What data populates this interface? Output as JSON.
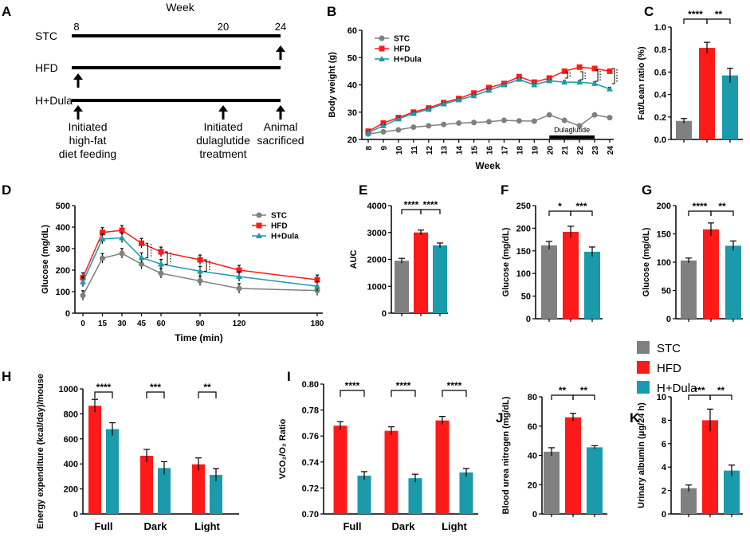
{
  "colors": {
    "stc": "#808080",
    "hfd": "#ff1a1a",
    "dula": "#1a9aaa",
    "axis": "#000000"
  },
  "legend_main": [
    "STC",
    "HFD",
    "H+Dula"
  ],
  "panels": {
    "A": {
      "letter": "A",
      "week_title": "Week",
      "groups": [
        "STC",
        "HFD",
        "H+Dula"
      ],
      "week_ticks": [
        "8",
        "20",
        "24"
      ],
      "annotations": [
        [
          "Initiated",
          "high-fat",
          "diet feeding"
        ],
        [
          "Initiated",
          "dulaglutide",
          "treatment"
        ],
        [
          "Animal",
          "sacrificed"
        ]
      ]
    },
    "B": {
      "letter": "B",
      "ylabel": "Body weight (g)",
      "xlabel": "Week",
      "x": [
        "8",
        "9",
        "10",
        "11",
        "12",
        "13",
        "14",
        "15",
        "16",
        "17",
        "18",
        "19",
        "20",
        "21",
        "22",
        "23",
        "24"
      ],
      "yticks": [
        "20",
        "30",
        "40",
        "50",
        "60"
      ],
      "ylim": [
        20,
        60
      ],
      "series": [
        {
          "name": "STC",
          "key": "stc",
          "values": [
            22,
            22.8,
            23.5,
            24.5,
            25,
            25.5,
            26,
            26.2,
            26.5,
            27,
            26.8,
            26.7,
            29,
            27,
            25,
            29,
            28
          ]
        },
        {
          "name": "HFD",
          "key": "hfd",
          "values": [
            23,
            26,
            28,
            30,
            31.5,
            33.5,
            35,
            37,
            39,
            40.5,
            43,
            41,
            42.5,
            45,
            46.5,
            46,
            45
          ]
        },
        {
          "name": "H+Dula",
          "key": "dula",
          "values": [
            22.5,
            25,
            27.5,
            29.5,
            31,
            33,
            34.5,
            36,
            38,
            40,
            42,
            40,
            41.5,
            41,
            41,
            40.5,
            38.5
          ]
        }
      ],
      "treatment_label": "Dulaglutide"
    },
    "C": {
      "letter": "C",
      "ylabel": "Fat/Lean ratio (%)",
      "yticks": [
        "0.0",
        "0.2",
        "0.4",
        "0.6",
        "0.8",
        "1.0"
      ],
      "ylim": [
        0,
        1.0
      ],
      "values": [
        0.165,
        0.815,
        0.57
      ],
      "sig": [
        "****",
        "**"
      ]
    },
    "D": {
      "letter": "D",
      "ylabel": "Glucose (mg/dL)",
      "xlabel": "Time (min)",
      "x": [
        0,
        15,
        30,
        45,
        60,
        90,
        120,
        180
      ],
      "xticks": [
        "0",
        "15",
        "30",
        "45",
        "60",
        "90",
        "120",
        "180"
      ],
      "yticks": [
        "0",
        "100",
        "200",
        "300",
        "400",
        "500"
      ],
      "ylim": [
        0,
        500
      ],
      "series": [
        {
          "name": "STC",
          "key": "stc",
          "values": [
            82,
            255,
            278,
            228,
            185,
            150,
            115,
            105
          ]
        },
        {
          "name": "HFD",
          "key": "hfd",
          "values": [
            165,
            375,
            385,
            325,
            285,
            248,
            200,
            155
          ]
        },
        {
          "name": "H+Dula",
          "key": "dula",
          "values": [
            145,
            345,
            350,
            258,
            228,
            195,
            170,
            125
          ]
        }
      ]
    },
    "E": {
      "letter": "E",
      "ylabel": "AUC",
      "yticks": [
        "0",
        "1000",
        "2000",
        "3000",
        "4000"
      ],
      "ylim": [
        0,
        4000
      ],
      "values": [
        1950,
        3000,
        2520
      ],
      "sig": [
        "****",
        "****"
      ]
    },
    "F": {
      "letter": "F",
      "ylabel": "Glucose (mg/dL)",
      "yticks": [
        "0",
        "50",
        "100",
        "150",
        "200",
        "250"
      ],
      "ylim": [
        0,
        250
      ],
      "values": [
        162,
        192,
        148
      ],
      "sig": [
        "*",
        "***"
      ]
    },
    "G": {
      "letter": "G",
      "ylabel": "Glucose (mg/dL)",
      "yticks": [
        "0",
        "50",
        "100",
        "150",
        "200"
      ],
      "ylim": [
        0,
        200
      ],
      "values": [
        103,
        158,
        129
      ],
      "sig": [
        "****",
        "**"
      ]
    },
    "H": {
      "letter": "H",
      "ylabel": "Energy expenditure (kcal/day)/mouse",
      "yticks": [
        "0",
        "200",
        "400",
        "600",
        "800",
        "1000"
      ],
      "ylim": [
        0,
        1000
      ],
      "categories": [
        "Full",
        "Dark",
        "Light"
      ],
      "hfd": [
        865,
        465,
        397
      ],
      "dula": [
        678,
        367,
        312
      ],
      "sig": [
        "****",
        "***",
        "**"
      ]
    },
    "I": {
      "letter": "I",
      "ylabel": "VCO₂/O₂ Ratio",
      "yticks": [
        "0.70",
        "0.72",
        "0.74",
        "0.76",
        "0.78",
        "0.80"
      ],
      "ylim": [
        0.7,
        0.8
      ],
      "categories": [
        "Full",
        "Dark",
        "Light"
      ],
      "hfd": [
        0.768,
        0.764,
        0.772
      ],
      "dula": [
        0.7295,
        0.7275,
        0.732
      ],
      "sig": [
        "****",
        "****",
        "****"
      ]
    },
    "J": {
      "letter": "J",
      "ylabel": "Blood urea nitrogen (mg/dL)",
      "yticks": [
        "0",
        "20",
        "40",
        "60",
        "80"
      ],
      "ylim": [
        0,
        80
      ],
      "values": [
        42.5,
        66,
        45.5
      ],
      "sig": [
        "**",
        "**"
      ]
    },
    "K": {
      "letter": "K",
      "ylabel": "Urinary albumin (μg/24 h)",
      "yticks": [
        "0",
        "2",
        "4",
        "6",
        "8",
        "10"
      ],
      "ylim": [
        0,
        10
      ],
      "values": [
        2.2,
        8.0,
        3.7
      ],
      "sig": [
        "***",
        "**"
      ]
    }
  },
  "chart_data": [
    {
      "type": "line",
      "panel": "B",
      "title": "",
      "xlabel": "Week",
      "ylabel": "Body weight (g)",
      "ylim": [
        20,
        60
      ],
      "x": [
        "8",
        "9",
        "10",
        "11",
        "12",
        "13",
        "14",
        "15",
        "16",
        "17",
        "18",
        "19",
        "20",
        "21",
        "22",
        "23",
        "24"
      ],
      "series": [
        {
          "name": "STC",
          "values": [
            22,
            22.8,
            23.5,
            24.5,
            25,
            25.5,
            26,
            26.2,
            26.5,
            27,
            26.8,
            26.7,
            29,
            27,
            25,
            29,
            28
          ]
        },
        {
          "name": "HFD",
          "values": [
            23,
            26,
            28,
            30,
            31.5,
            33.5,
            35,
            37,
            39,
            40.5,
            43,
            41,
            42.5,
            45,
            46.5,
            46,
            45
          ]
        },
        {
          "name": "H+Dula",
          "values": [
            22.5,
            25,
            27.5,
            29.5,
            31,
            33,
            34.5,
            36,
            38,
            40,
            42,
            40,
            41.5,
            41,
            41,
            40.5,
            38.5
          ]
        }
      ]
    },
    {
      "type": "bar",
      "panel": "C",
      "ylabel": "Fat/Lean ratio (%)",
      "categories": [
        "STC",
        "HFD",
        "H+Dula"
      ],
      "values": [
        0.165,
        0.815,
        0.57
      ],
      "ylim": [
        0,
        1.0
      ]
    },
    {
      "type": "line",
      "panel": "D",
      "xlabel": "Time (min)",
      "ylabel": "Glucose (mg/dL)",
      "ylim": [
        0,
        500
      ],
      "x": [
        0,
        15,
        30,
        45,
        60,
        90,
        120,
        180
      ],
      "series": [
        {
          "name": "STC",
          "values": [
            82,
            255,
            278,
            228,
            185,
            150,
            115,
            105
          ]
        },
        {
          "name": "HFD",
          "values": [
            165,
            375,
            385,
            325,
            285,
            248,
            200,
            155
          ]
        },
        {
          "name": "H+Dula",
          "values": [
            145,
            345,
            350,
            258,
            228,
            195,
            170,
            125
          ]
        }
      ]
    },
    {
      "type": "bar",
      "panel": "E",
      "ylabel": "AUC",
      "categories": [
        "STC",
        "HFD",
        "H+Dula"
      ],
      "values": [
        1950,
        3000,
        2520
      ],
      "ylim": [
        0,
        4000
      ]
    },
    {
      "type": "bar",
      "panel": "F",
      "ylabel": "Glucose (mg/dL)",
      "categories": [
        "STC",
        "HFD",
        "H+Dula"
      ],
      "values": [
        162,
        192,
        148
      ],
      "ylim": [
        0,
        250
      ]
    },
    {
      "type": "bar",
      "panel": "G",
      "ylabel": "Glucose (mg/dL)",
      "categories": [
        "STC",
        "HFD",
        "H+Dula"
      ],
      "values": [
        103,
        158,
        129
      ],
      "ylim": [
        0,
        200
      ]
    },
    {
      "type": "bar",
      "panel": "H",
      "ylabel": "Energy expenditure (kcal/day)/mouse",
      "categories": [
        "Full",
        "Dark",
        "Light"
      ],
      "ylim": [
        0,
        1000
      ],
      "series": [
        {
          "name": "HFD",
          "values": [
            865,
            465,
            397
          ]
        },
        {
          "name": "H+Dula",
          "values": [
            678,
            367,
            312
          ]
        }
      ]
    },
    {
      "type": "bar",
      "panel": "I",
      "ylabel": "VCO2/O2 Ratio",
      "categories": [
        "Full",
        "Dark",
        "Light"
      ],
      "ylim": [
        0.7,
        0.8
      ],
      "series": [
        {
          "name": "HFD",
          "values": [
            0.768,
            0.764,
            0.772
          ]
        },
        {
          "name": "H+Dula",
          "values": [
            0.7295,
            0.7275,
            0.732
          ]
        }
      ]
    },
    {
      "type": "bar",
      "panel": "J",
      "ylabel": "Blood urea nitrogen (mg/dL)",
      "categories": [
        "STC",
        "HFD",
        "H+Dula"
      ],
      "values": [
        42.5,
        66,
        45.5
      ],
      "ylim": [
        0,
        80
      ]
    },
    {
      "type": "bar",
      "panel": "K",
      "ylabel": "Urinary albumin (μg/24 h)",
      "categories": [
        "STC",
        "HFD",
        "H+Dula"
      ],
      "values": [
        2.2,
        8.0,
        3.7
      ],
      "ylim": [
        0,
        10
      ]
    }
  ]
}
